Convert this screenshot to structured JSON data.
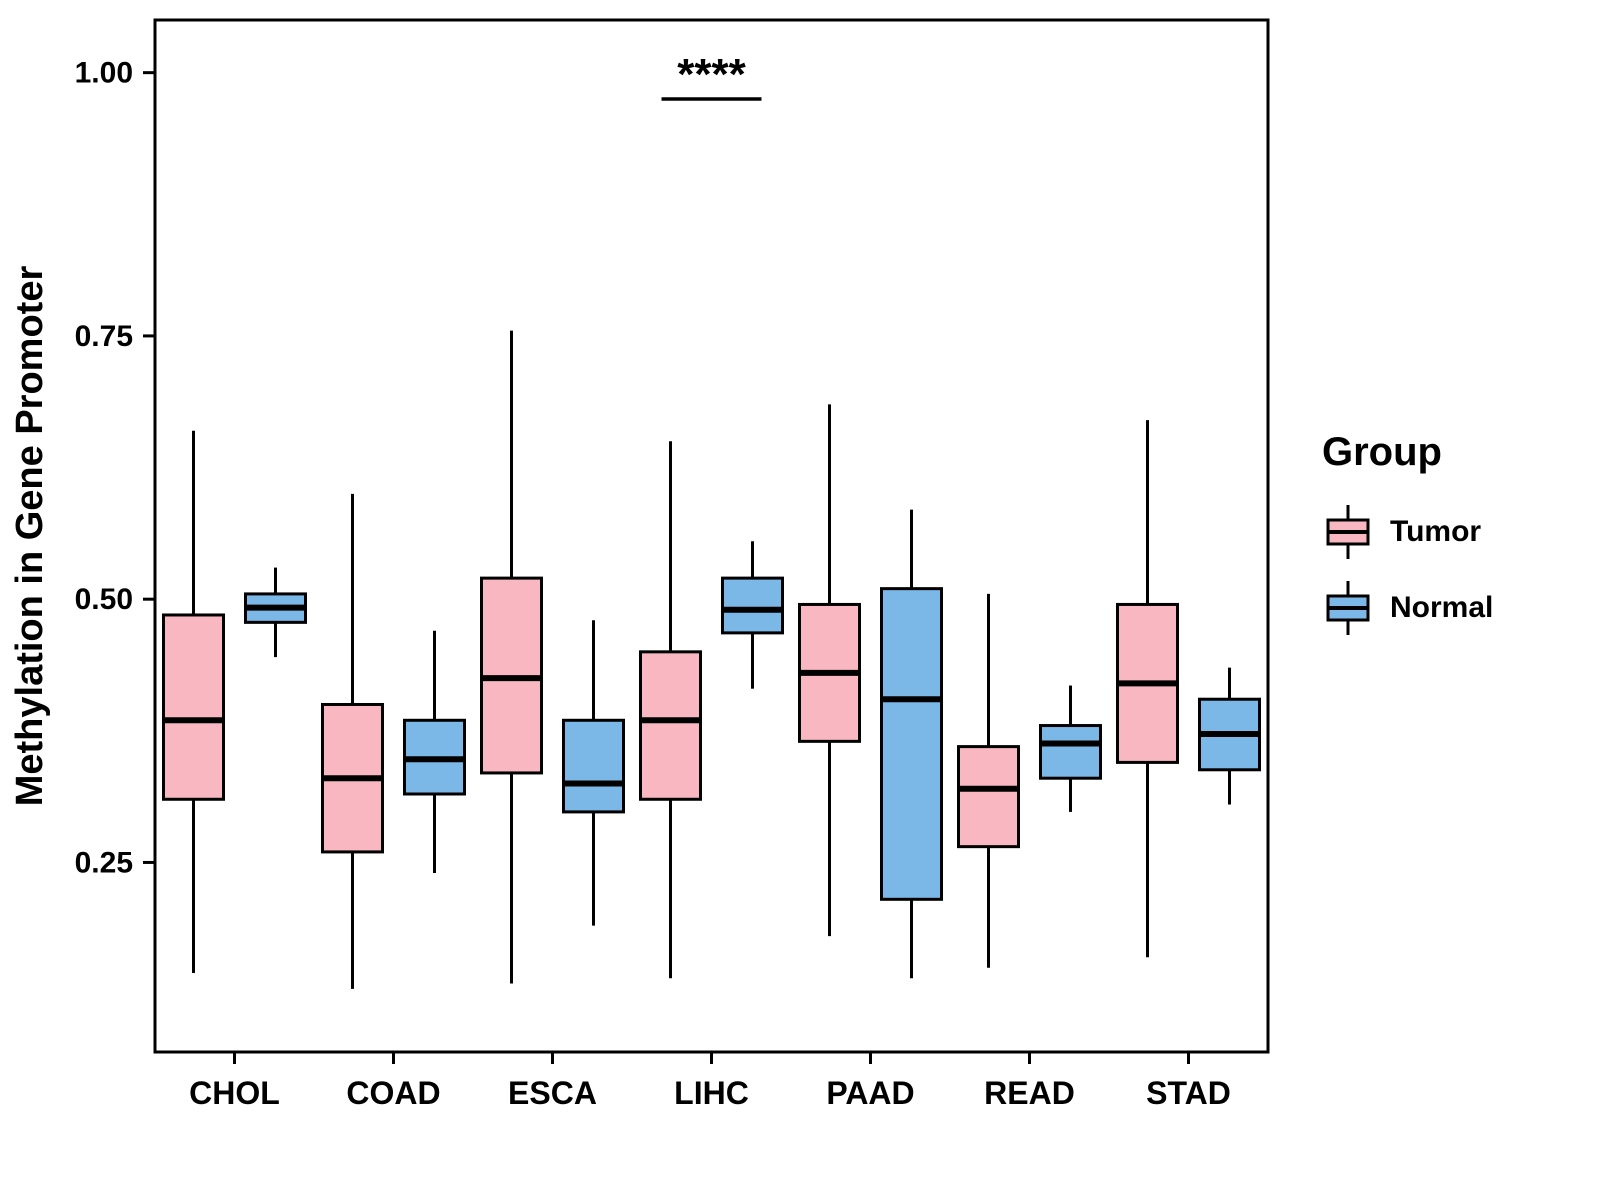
{
  "chart_data": {
    "type": "boxplot",
    "title": "",
    "xlabel": "",
    "ylabel": "Methylation in Gene Promoter",
    "categories": [
      "CHOL",
      "COAD",
      "ESCA",
      "LIHC",
      "PAAD",
      "READ",
      "STAD"
    ],
    "y_ticks": [
      0.25,
      0.5,
      0.75,
      1.0
    ],
    "ylim": [
      0.07,
      1.05
    ],
    "grid": false,
    "legend": {
      "title": "Group",
      "position": "right",
      "entries": [
        {
          "label": "Tumor",
          "color": "#F9B7C2"
        },
        {
          "label": "Normal",
          "color": "#7BB8E8"
        }
      ]
    },
    "significance": {
      "category": "LIHC",
      "label": "****",
      "line_y": 0.975
    },
    "series": [
      {
        "name": "Tumor",
        "color": "#F9B7C2",
        "boxes": [
          {
            "category": "CHOL",
            "whisker_low": 0.145,
            "q1": 0.31,
            "median": 0.385,
            "q3": 0.485,
            "whisker_high": 0.66
          },
          {
            "category": "COAD",
            "whisker_low": 0.13,
            "q1": 0.26,
            "median": 0.33,
            "q3": 0.4,
            "whisker_high": 0.6
          },
          {
            "category": "ESCA",
            "whisker_low": 0.135,
            "q1": 0.335,
            "median": 0.425,
            "q3": 0.52,
            "whisker_high": 0.755
          },
          {
            "category": "LIHC",
            "whisker_low": 0.14,
            "q1": 0.31,
            "median": 0.385,
            "q3": 0.45,
            "whisker_high": 0.65
          },
          {
            "category": "PAAD",
            "whisker_low": 0.18,
            "q1": 0.365,
            "median": 0.43,
            "q3": 0.495,
            "whisker_high": 0.685
          },
          {
            "category": "READ",
            "whisker_low": 0.15,
            "q1": 0.265,
            "median": 0.32,
            "q3": 0.36,
            "whisker_high": 0.505
          },
          {
            "category": "STAD",
            "whisker_low": 0.16,
            "q1": 0.345,
            "median": 0.42,
            "q3": 0.495,
            "whisker_high": 0.67
          }
        ]
      },
      {
        "name": "Normal",
        "color": "#7BB8E8",
        "boxes": [
          {
            "category": "CHOL",
            "whisker_low": 0.445,
            "q1": 0.478,
            "median": 0.492,
            "q3": 0.505,
            "whisker_high": 0.53
          },
          {
            "category": "COAD",
            "whisker_low": 0.24,
            "q1": 0.315,
            "median": 0.348,
            "q3": 0.385,
            "whisker_high": 0.47
          },
          {
            "category": "ESCA",
            "whisker_low": 0.19,
            "q1": 0.298,
            "median": 0.325,
            "q3": 0.385,
            "whisker_high": 0.48
          },
          {
            "category": "LIHC",
            "whisker_low": 0.415,
            "q1": 0.468,
            "median": 0.49,
            "q3": 0.52,
            "whisker_high": 0.555
          },
          {
            "category": "PAAD",
            "whisker_low": 0.14,
            "q1": 0.215,
            "median": 0.405,
            "q3": 0.51,
            "whisker_high": 0.585
          },
          {
            "category": "READ",
            "whisker_low": 0.298,
            "q1": 0.33,
            "median": 0.363,
            "q3": 0.38,
            "whisker_high": 0.418
          },
          {
            "category": "STAD",
            "whisker_low": 0.305,
            "q1": 0.338,
            "median": 0.372,
            "q3": 0.405,
            "whisker_high": 0.435
          }
        ]
      }
    ]
  }
}
